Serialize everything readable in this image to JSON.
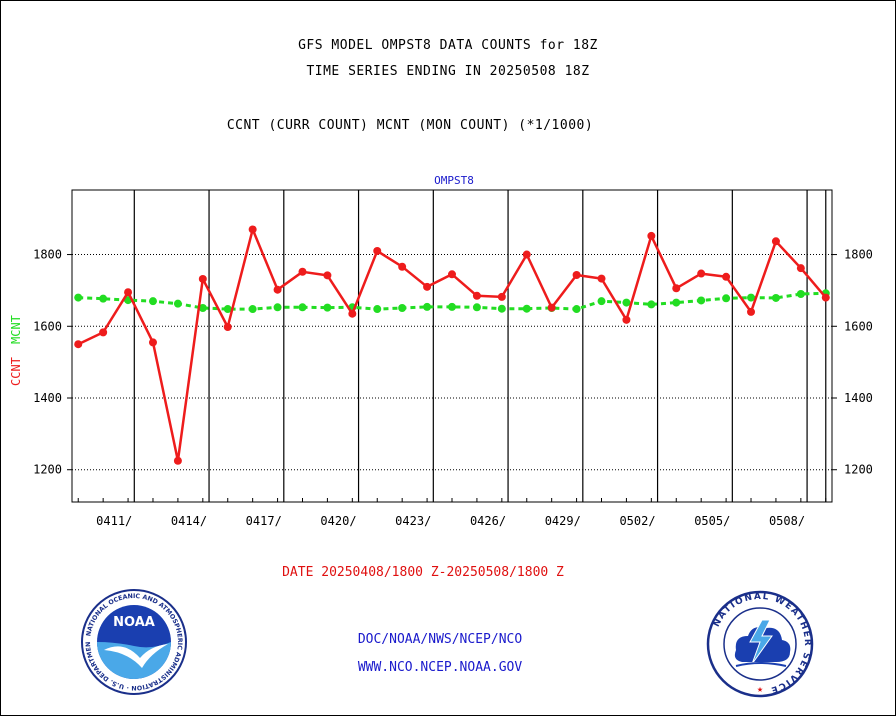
{
  "header": {
    "title_line1": "GFS MODEL OMPST8 DATA COUNTS for 18Z",
    "title_line2": "TIME SERIES ENDING IN 20250508 18Z",
    "subtitle": "CCNT (CURR COUNT) MCNT (MON COUNT) (*1/1000)"
  },
  "footer": {
    "date_range": "DATE 20250408/1800 Z-20250508/1800 Z",
    "org": "DOC/NOAA/NWS/NCEP/NCO",
    "url": "WWW.NCO.NCEP.NOAA.GOV"
  },
  "logos": {
    "left_text": "NOAA",
    "right_text": "NATIONAL WEATHER SERVICE"
  },
  "colors": {
    "ccnt": "#ee1c1c",
    "mcnt": "#22dd22",
    "inner_label": "#1a1acc"
  },
  "chart_data": {
    "type": "line",
    "title": "OMPST8",
    "ylabel_ccnt": "CCNT",
    "ylabel_mcnt": "MCNT",
    "ylim": [
      1110,
      1980
    ],
    "yticks": [
      1200,
      1400,
      1600,
      1800
    ],
    "x_start_day": 0,
    "x_end_day": 30,
    "xlim": [
      -0.25,
      30.25
    ],
    "x_ticks": [
      {
        "label": "0411/",
        "day": 2.25
      },
      {
        "label": "0414/",
        "day": 5.25
      },
      {
        "label": "0417/",
        "day": 8.25
      },
      {
        "label": "0420/",
        "day": 11.25
      },
      {
        "label": "0423/",
        "day": 14.25
      },
      {
        "label": "0426/",
        "day": 17.25
      },
      {
        "label": "0429/",
        "day": 20.25
      },
      {
        "label": "0502/",
        "day": 23.25
      },
      {
        "label": "0505/",
        "day": 26.25
      },
      {
        "label": "0508/",
        "day": 29.25
      }
    ],
    "series": [
      {
        "name": "CCNT",
        "x": [
          0,
          1,
          2,
          3,
          4,
          5,
          6,
          7,
          8,
          9,
          10,
          11,
          12,
          13,
          14,
          15,
          16,
          17,
          18,
          19,
          20,
          21,
          22,
          23,
          24,
          25,
          26,
          27,
          28,
          29,
          30
        ],
        "values": [
          1550,
          1583,
          1695,
          1555,
          1225,
          1732,
          1598,
          1870,
          1702,
          1752,
          1742,
          1635,
          1810,
          1766,
          1710,
          1745,
          1685,
          1682,
          1800,
          1652,
          1743,
          1733,
          1618,
          1852,
          1706,
          1747,
          1738,
          1640,
          1837,
          1762,
          1680
        ]
      },
      {
        "name": "MCNT",
        "x": [
          0,
          1,
          2,
          3,
          4,
          5,
          6,
          7,
          8,
          9,
          10,
          11,
          12,
          13,
          14,
          15,
          16,
          17,
          18,
          19,
          20,
          21,
          22,
          23,
          24,
          25,
          26,
          27,
          28,
          29,
          30
        ],
        "values": [
          1680,
          1677,
          1673,
          1670,
          1663,
          1651,
          1648,
          1648,
          1653,
          1653,
          1652,
          1653,
          1648,
          1651,
          1654,
          1654,
          1653,
          1649,
          1649,
          1651,
          1648,
          1670,
          1666,
          1661,
          1666,
          1672,
          1678,
          1680,
          1679,
          1690,
          1692
        ]
      }
    ]
  }
}
